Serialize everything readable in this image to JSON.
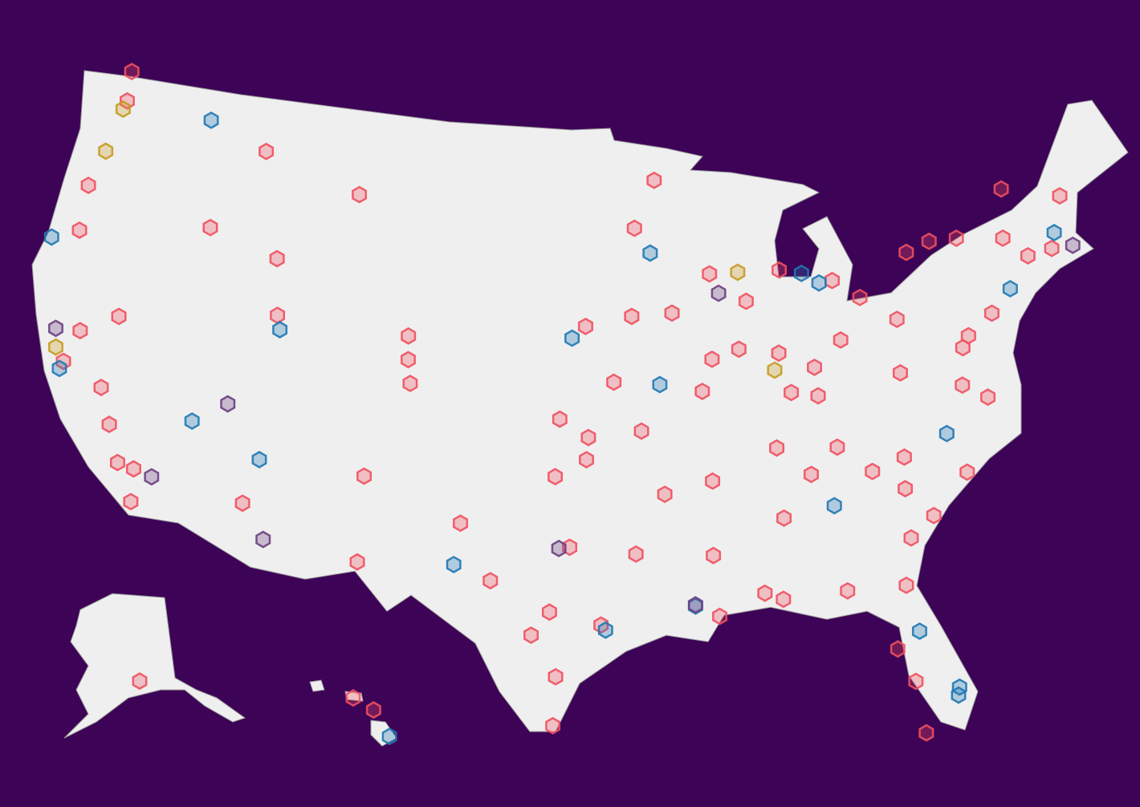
{
  "marker_groups": [
    {
      "color": "#f0505f",
      "points": [
        [
          -122.3,
          47.6
        ],
        [
          -122.5,
          48.75
        ],
        [
          -123.1,
          44.05
        ],
        [
          -122.9,
          42.3
        ],
        [
          -116.2,
          43.6
        ],
        [
          -114.0,
          46.9
        ],
        [
          -108.5,
          45.8
        ],
        [
          -112.4,
          42.9
        ],
        [
          -111.9,
          40.76
        ],
        [
          -119.8,
          39.5
        ],
        [
          -121.5,
          38.6
        ],
        [
          -121.9,
          37.3
        ],
        [
          -119.8,
          36.7
        ],
        [
          -119.0,
          35.4
        ],
        [
          -118.2,
          34.05
        ],
        [
          -117.2,
          32.7
        ],
        [
          -117.4,
          33.95
        ],
        [
          -112.1,
          33.45
        ],
        [
          -106.6,
          35.1
        ],
        [
          -105.0,
          39.7
        ],
        [
          -104.8,
          38.8
        ],
        [
          -105.1,
          40.6
        ],
        [
          -101.9,
          33.6
        ],
        [
          -96.8,
          32.8
        ],
        [
          -97.7,
          30.3
        ],
        [
          -95.4,
          29.8
        ],
        [
          -98.5,
          29.4
        ],
        [
          -97.4,
          27.8
        ],
        [
          -97.5,
          35.5
        ],
        [
          -96.0,
          36.15
        ],
        [
          -97.3,
          37.7
        ],
        [
          -94.6,
          39.1
        ],
        [
          -96.0,
          41.25
        ],
        [
          -93.6,
          41.6
        ],
        [
          -93.3,
          44.98
        ],
        [
          -92.1,
          46.8
        ],
        [
          -89.4,
          43.07
        ],
        [
          -87.6,
          41.9
        ],
        [
          -91.5,
          41.66
        ],
        [
          -90.2,
          38.6
        ],
        [
          -93.3,
          37.2
        ],
        [
          -86.2,
          39.8
        ],
        [
          -83.0,
          42.3
        ],
        [
          -85.7,
          42.96
        ],
        [
          -83.0,
          40.0
        ],
        [
          -81.7,
          41.5
        ],
        [
          -84.5,
          39.1
        ],
        [
          -85.8,
          38.25
        ],
        [
          -80.0,
          40.44
        ],
        [
          -86.8,
          36.2
        ],
        [
          -90.0,
          35.15
        ],
        [
          -92.3,
          34.75
        ],
        [
          -90.2,
          32.3
        ],
        [
          -86.8,
          33.5
        ],
        [
          -80.8,
          35.2
        ],
        [
          -77.4,
          37.5
        ],
        [
          -77.0,
          38.9
        ],
        [
          -76.6,
          39.3
        ],
        [
          -75.2,
          39.95
        ],
        [
          -71.4,
          41.8
        ],
        [
          -72.7,
          41.76
        ],
        [
          -73.75,
          42.65
        ],
        [
          -76.15,
          43.05
        ],
        [
          -78.9,
          42.9
        ],
        [
          -77.6,
          43.15
        ],
        [
          -73.2,
          44.5
        ],
        [
          -70.25,
          43.66
        ],
        [
          -81.0,
          34.0
        ],
        [
          -79.9,
          32.8
        ],
        [
          -81.1,
          32.1
        ],
        [
          -81.66,
          30.33
        ],
        [
          -82.46,
          27.95
        ],
        [
          -81.9,
          26.6
        ],
        [
          -81.8,
          24.55
        ],
        [
          -84.3,
          30.44
        ],
        [
          -87.2,
          30.4
        ],
        [
          -88.0,
          30.7
        ],
        [
          -90.1,
          29.95
        ],
        [
          -93.75,
          32.5
        ],
        [
          -106.5,
          31.8
        ],
        [
          -84.5,
          38.0
        ],
        [
          -83.9,
          35.96
        ],
        [
          -85.3,
          35.05
        ],
        [
          -82.4,
          34.85
        ],
        [
          -97.5,
          25.9
        ],
        [
          -149.9,
          61.2
        ],
        [
          -157.85,
          21.3
        ],
        [
          -156.3,
          20.8
        ],
        [
          -76.3,
          36.85
        ],
        [
          -100.4,
          31.45
        ],
        [
          -95.9,
          37.0
        ],
        [
          -88.2,
          40.1
        ],
        [
          -89.6,
          39.8
        ],
        [
          -80.3,
          38.4
        ],
        [
          -78.0,
          34.2
        ]
      ]
    },
    {
      "color": "#1f78b4",
      "points": [
        [
          -117.4,
          47.66
        ],
        [
          -124.2,
          41.75
        ],
        [
          -115.15,
          36.2
        ],
        [
          -111.65,
          35.2
        ],
        [
          -111.66,
          40.23
        ],
        [
          -96.7,
          40.8
        ],
        [
          -92.3,
          38.95
        ],
        [
          -92.5,
          44.0
        ],
        [
          -83.7,
          42.28
        ],
        [
          -84.55,
          42.73
        ],
        [
          -102.1,
          32.0
        ],
        [
          -84.4,
          33.75
        ],
        [
          -78.6,
          35.8
        ],
        [
          -74.0,
          40.7
        ],
        [
          -71.06,
          42.36
        ],
        [
          -81.4,
          28.5
        ],
        [
          -80.2,
          25.8
        ],
        [
          -95.2,
          29.6
        ],
        [
          -155.1,
          19.7
        ],
        [
          -122.0,
          37.0
        ],
        [
          -80.1,
          26.1
        ],
        [
          -91.15,
          30.4
        ]
      ]
    },
    {
      "color": "#6b3f80",
      "points": [
        [
          -122.7,
          38.44
        ],
        [
          -116.5,
          33.8
        ],
        [
          -110.9,
          32.2
        ],
        [
          -113.6,
          37.1
        ],
        [
          -91.15,
          30.45
        ],
        [
          -97.3,
          32.75
        ],
        [
          -89.0,
          42.3
        ],
        [
          -70.3,
          41.7
        ]
      ]
    },
    {
      "color": "#c79a1f",
      "points": [
        [
          -122.7,
          45.5
        ],
        [
          -122.45,
          37.75
        ],
        [
          -86.5,
          39.17
        ],
        [
          -122.4,
          47.25
        ],
        [
          -87.9,
          43.04
        ]
      ]
    }
  ]
}
